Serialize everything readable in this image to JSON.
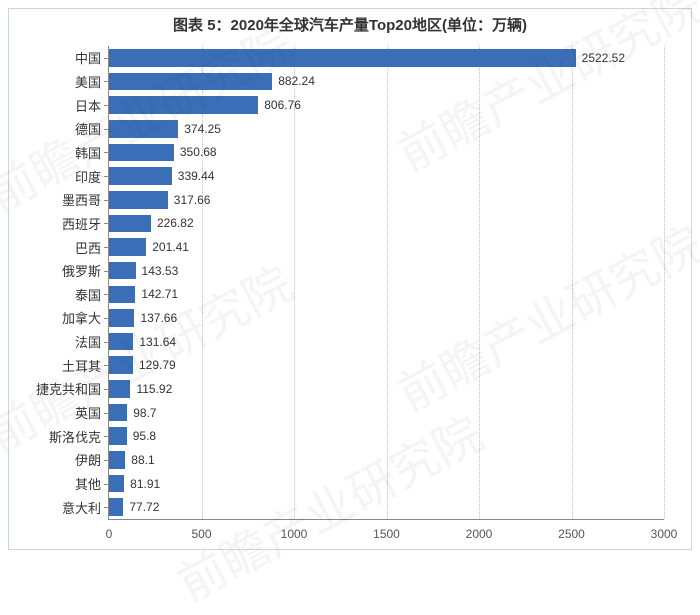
{
  "chart": {
    "type": "bar-horizontal",
    "title": "图表 5：2020年全球汽车产量Top20地区(单位：万辆)",
    "title_fontsize": 15,
    "title_color": "#333333",
    "background_color": "#ffffff",
    "frame_border_color": "#cfd4d8",
    "axis_color": "#888888",
    "grid_color": "#bfbfbf",
    "grid_style": "dotted",
    "bar_color": "#3a6fb7",
    "value_label_color": "#333333",
    "y_label_color": "#333333",
    "y_label_fontsize": 13,
    "value_label_fontsize": 12,
    "x_tick_fontsize": 12,
    "xlim": [
      0,
      3000
    ],
    "xtick_step": 500,
    "xticks": [
      0,
      500,
      1000,
      1500,
      2000,
      2500,
      3000
    ],
    "bar_height_ratio": 0.72,
    "categories": [
      "中国",
      "美国",
      "日本",
      "德国",
      "韩国",
      "印度",
      "墨西哥",
      "西班牙",
      "巴西",
      "俄罗斯",
      "泰国",
      "加拿大",
      "法国",
      "土耳其",
      "捷克共和国",
      "英国",
      "斯洛伐克",
      "伊朗",
      "其他",
      "意大利"
    ],
    "values": [
      2522.52,
      882.24,
      806.76,
      374.25,
      350.68,
      339.44,
      317.66,
      226.82,
      201.41,
      143.53,
      142.71,
      137.66,
      131.64,
      129.79,
      115.92,
      98.7,
      95.8,
      88.1,
      81.91,
      77.72
    ],
    "watermark_text": "前瞻产业研究院"
  }
}
